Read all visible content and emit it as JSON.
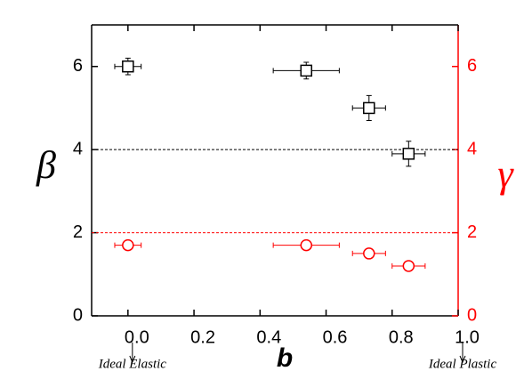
{
  "chart_data": {
    "type": "scatter",
    "xlabel": "b",
    "ylabel": "β",
    "y2label": "γ",
    "xlim": [
      -0.11,
      1.0
    ],
    "xticks": [
      {
        "value": 0,
        "label": "0.0"
      },
      {
        "value": 0.2,
        "label": "0.2"
      },
      {
        "value": 0.4,
        "label": "0.4"
      },
      {
        "value": 0.6,
        "label": "0.6"
      },
      {
        "value": 0.8,
        "label": "0.8"
      },
      {
        "value": 1,
        "label": "1.0"
      }
    ],
    "ylim": [
      0,
      7
    ],
    "yticks": [
      0,
      2,
      4,
      6
    ],
    "y2lim": [
      0,
      7
    ],
    "y2ticks": [
      0,
      2,
      4,
      6
    ],
    "y2color": "#ff0000",
    "series": [
      {
        "color": "#000000",
        "marker": "square",
        "x": [
          0,
          0.54,
          0.73,
          0.85
        ],
        "values": [
          6.0,
          5.9,
          5.0,
          3.9
        ],
        "xerr": [
          0.04,
          0.1,
          0.05,
          0.05
        ],
        "yerr": [
          0.2,
          0.2,
          0.3,
          0.3
        ]
      },
      {
        "color": "#ff0000",
        "marker": "circle",
        "axis": "y2",
        "x": [
          0,
          0.54,
          0.73,
          0.85
        ],
        "values": [
          1.7,
          1.7,
          1.5,
          1.2
        ],
        "xerr": [
          0.04,
          0.1,
          0.05,
          0.05
        ]
      }
    ],
    "hlines": [
      {
        "y": 4,
        "color": "#000000"
      },
      {
        "y": 2,
        "color": "#ff0000",
        "axis": "y2"
      }
    ],
    "annotations": [
      {
        "text": "Ideal Elastic",
        "x": 0
      },
      {
        "text": "Ideal Plastic",
        "x": 1
      }
    ]
  }
}
